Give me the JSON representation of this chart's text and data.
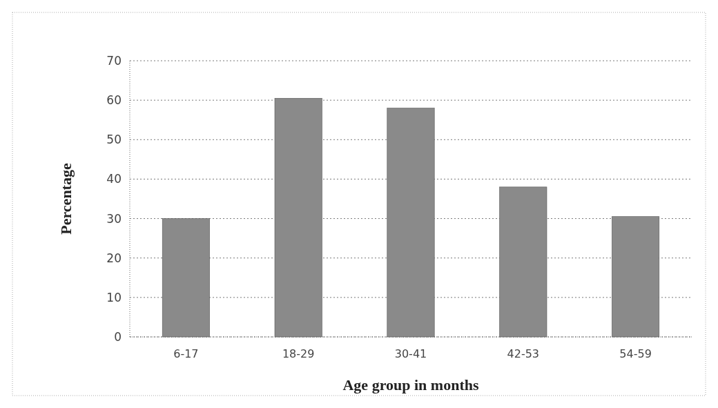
{
  "chart_data": {
    "type": "bar",
    "xlabel": "Age group in months",
    "ylabel": "Percentage",
    "categories": [
      "6-17",
      "18-29",
      "30-41",
      "42-53",
      "54-59"
    ],
    "values": [
      30,
      60.5,
      58,
      38,
      30.5
    ],
    "color": "#8a8a8a",
    "ylim": [
      0,
      70
    ],
    "yticks": [
      0,
      10,
      20,
      30,
      40,
      50,
      60,
      70
    ],
    "grid": "y"
  }
}
